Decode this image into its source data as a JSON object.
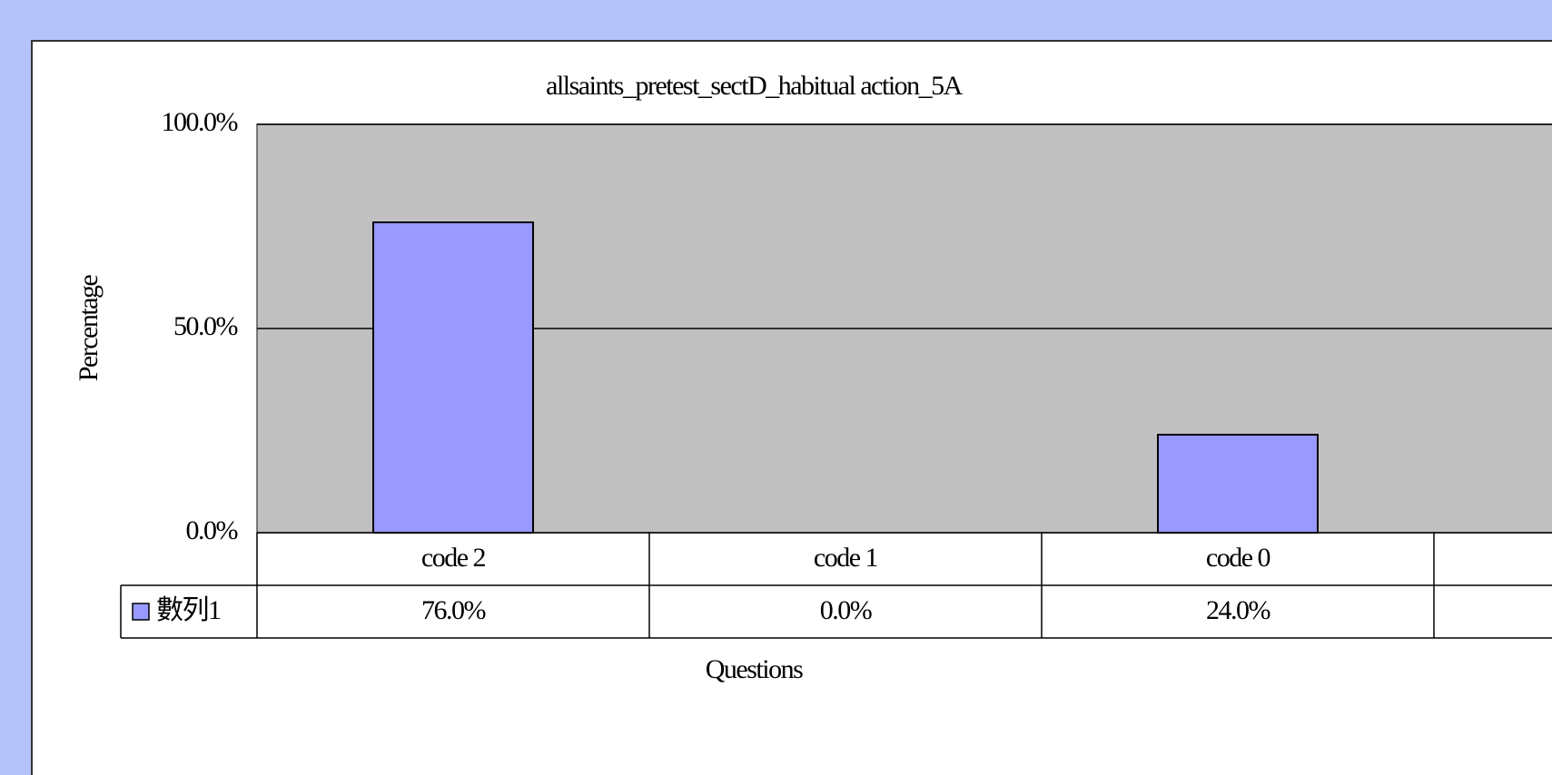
{
  "chart_data": {
    "type": "bar",
    "title": "allsaints_pretest_sectD_habitual action_5A",
    "x_label": "Questions",
    "y_label": "Percentage",
    "categories": [
      "code 2",
      "code 1",
      "code 0"
    ],
    "series": [
      {
        "name": "數列1",
        "color": "#9999ff",
        "values": [
          76,
          0,
          24
        ],
        "value_labels": [
          "76.0%",
          "0.0%",
          "24.0%"
        ]
      }
    ],
    "ylim": [
      0,
      100
    ],
    "yticks": [
      {
        "value": 0,
        "label": "0.0%"
      },
      {
        "value": 50,
        "label": "50.0%"
      },
      {
        "value": 100,
        "label": "100.0%"
      }
    ],
    "grid": true,
    "plot_background": "#c0c0c0"
  }
}
